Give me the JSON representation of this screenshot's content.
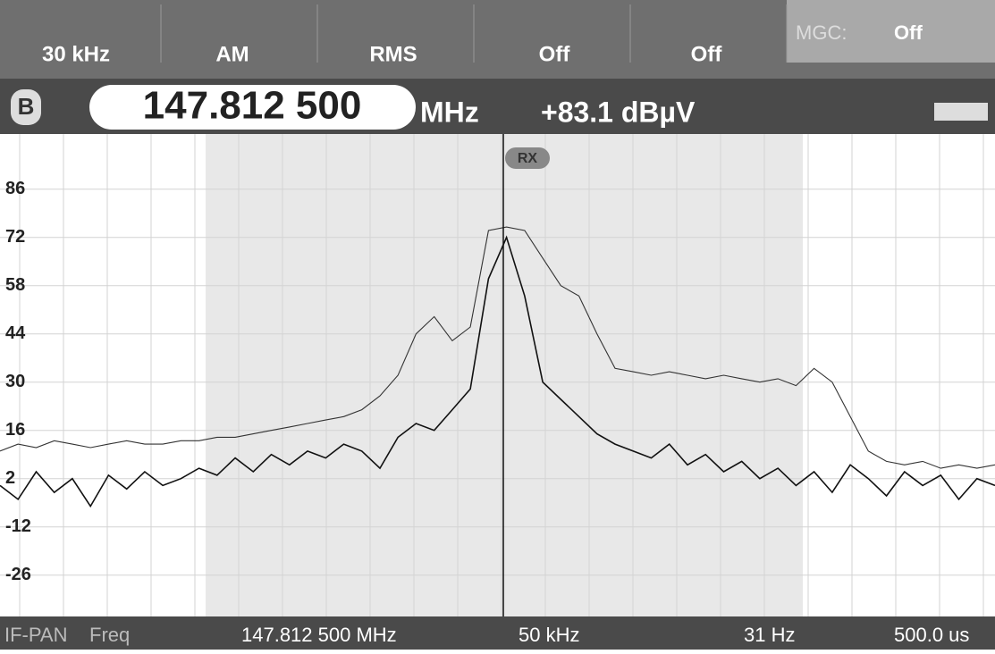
{
  "top_bar": {
    "items": [
      "30 kHz",
      "AM",
      "RMS",
      "Off",
      "Off"
    ],
    "mgc": {
      "label": "MGC:",
      "value": "Off"
    }
  },
  "freq_bar": {
    "badge": "B",
    "frequency": "147.812 500",
    "unit": "MHz",
    "level": "+83.1 dBµV"
  },
  "chart_data": {
    "type": "line",
    "marker": "RX",
    "categories": [
      null,
      null,
      null,
      null,
      null,
      null,
      null,
      null,
      null,
      null,
      null,
      null,
      null,
      null,
      null,
      null,
      null,
      null,
      null,
      null,
      null,
      null,
      null,
      null,
      null,
      null,
      null,
      null,
      null,
      null,
      null,
      null,
      null,
      null,
      null,
      null,
      null,
      null,
      null,
      null,
      null,
      null,
      null,
      null,
      null,
      null,
      null,
      null,
      null,
      null,
      null,
      null,
      null,
      null,
      null,
      null
    ],
    "series": [
      {
        "color": "#333333",
        "values": [
          10,
          12,
          11,
          13,
          12,
          11,
          12,
          13,
          12,
          12,
          13,
          13,
          14,
          14,
          15,
          16,
          17,
          18,
          19,
          20,
          22,
          26,
          32,
          44,
          49,
          42,
          46,
          74,
          75,
          74,
          66,
          58,
          55,
          44,
          34,
          33,
          32,
          33,
          32,
          31,
          32,
          31,
          30,
          31,
          29,
          34,
          30,
          20,
          10,
          7,
          6,
          7,
          5,
          6,
          5,
          6
        ]
      },
      {
        "color": "#111111",
        "values": [
          0,
          -4,
          4,
          -2,
          2,
          -6,
          3,
          -1,
          4,
          0,
          2,
          5,
          3,
          8,
          4,
          9,
          6,
          10,
          8,
          12,
          10,
          5,
          14,
          18,
          16,
          22,
          28,
          60,
          72,
          55,
          30,
          25,
          20,
          15,
          12,
          10,
          8,
          12,
          6,
          9,
          4,
          7,
          2,
          5,
          0,
          4,
          -2,
          6,
          2,
          -3,
          4,
          0,
          3,
          -4,
          2,
          0
        ]
      }
    ],
    "ylim": [
      -38,
      102
    ],
    "yticks": [
      86,
      72,
      58,
      44,
      30,
      16,
      2,
      -12,
      -26
    ],
    "grid": true
  },
  "status_bar": {
    "mode": "IF-PAN",
    "freq_label": "Freq",
    "frequency": "147.812 500 MHz",
    "span": "50 kHz",
    "resolution": "31 Hz",
    "time": "500.0 us"
  }
}
